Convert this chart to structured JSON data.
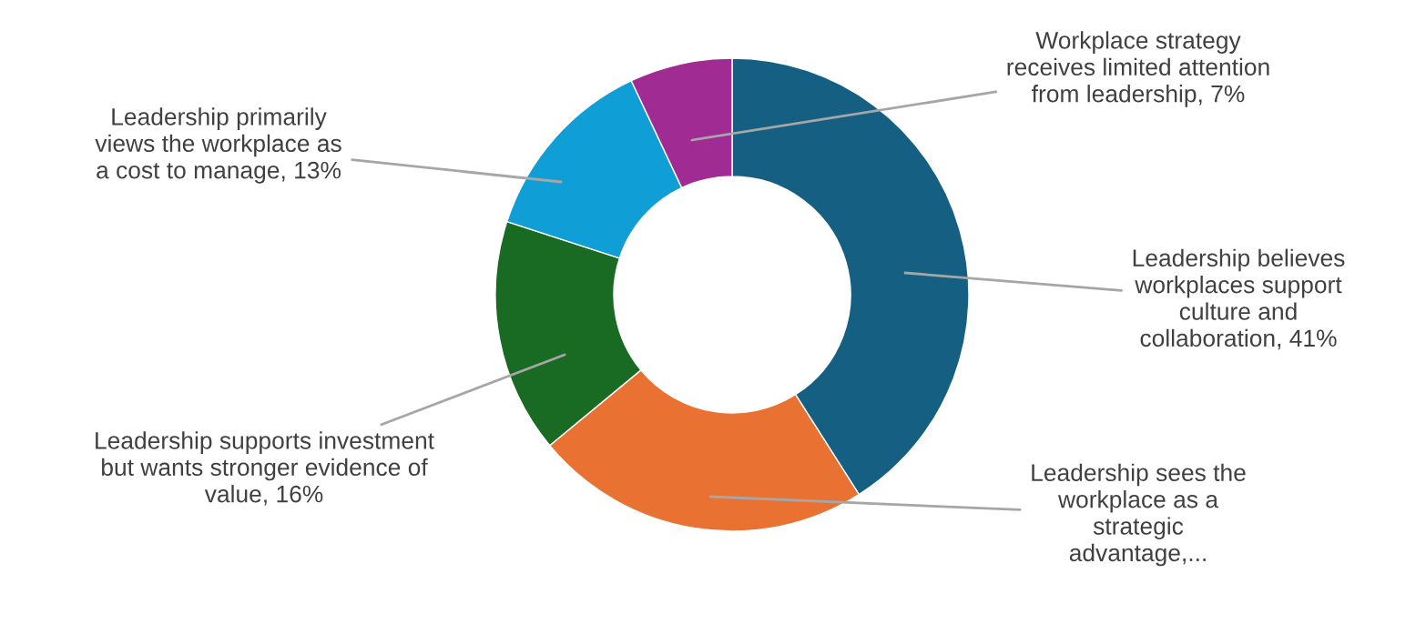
{
  "chart_data": {
    "type": "donut",
    "categories": [
      "Leadership believes workplaces support culture and collaboration",
      "Leadership sees the workplace as a strategic advantage,...",
      "Leadership supports investment but wants stronger evidence of value",
      "Leadership primarily views the workplace as a cost to manage",
      "Workplace strategy receives limited attention from leadership"
    ],
    "values": [
      41,
      23,
      16,
      13,
      7
    ],
    "value_labels": [
      "41%",
      null,
      "16%",
      "13%",
      "7%"
    ],
    "colors": [
      "#156082",
      "#e97132",
      "#196b24",
      "#0f9ed5",
      "#a02b93"
    ],
    "legend": false
  }
}
